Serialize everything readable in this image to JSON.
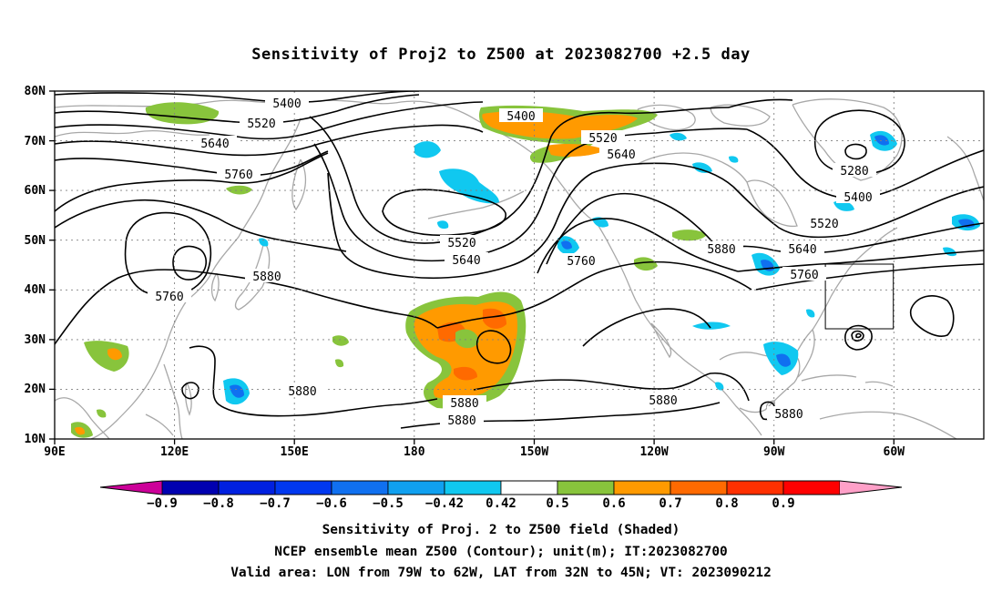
{
  "title": "Sensitivity of Proj2 to Z500 at 2023082700 +2.5 day",
  "lat_labels": [
    "80N",
    "70N",
    "60N",
    "50N",
    "40N",
    "30N",
    "20N",
    "10N"
  ],
  "lon_labels": [
    "90E",
    "120E",
    "150E",
    "180",
    "150W",
    "120W",
    "90W",
    "60W"
  ],
  "contour_labels": [
    "5400",
    "5520",
    "5640",
    "5760",
    "5880",
    "5760",
    "5880",
    "5400",
    "5520",
    "5640",
    "5520",
    "5640",
    "5760",
    "5880",
    "5280",
    "5400",
    "5520",
    "5640",
    "5760",
    "5880",
    "5880",
    "5880",
    "5880"
  ],
  "colorbar": {
    "ticks": [
      "-0.9",
      "-0.8",
      "-0.7",
      "-0.6",
      "-0.5",
      "-0.42",
      "0.42",
      "0.5",
      "0.6",
      "0.7",
      "0.8",
      "0.9"
    ],
    "colors": [
      "#cc0099",
      "#0000b0",
      "#0020e0",
      "#0038f0",
      "#1070f0",
      "#10a0f0",
      "#10c8f0",
      "#ffffff",
      "#88c43c",
      "#ff9a00",
      "#ff6a00",
      "#ff3000",
      "#ff0000",
      "#ffa0c8"
    ]
  },
  "valid_box": {
    "lon": [
      -79,
      -62
    ],
    "lat": [
      32,
      45
    ]
  },
  "caption_line1": "Sensitivity of Proj. 2 to Z500 field (Shaded)",
  "caption_line2": "NCEP ensemble mean Z500 (Contour); unit(m); IT:2023082700",
  "caption_line3": "Valid area: LON from 79W to 62W, LAT from 32N to 45N; VT: 2023090212"
}
